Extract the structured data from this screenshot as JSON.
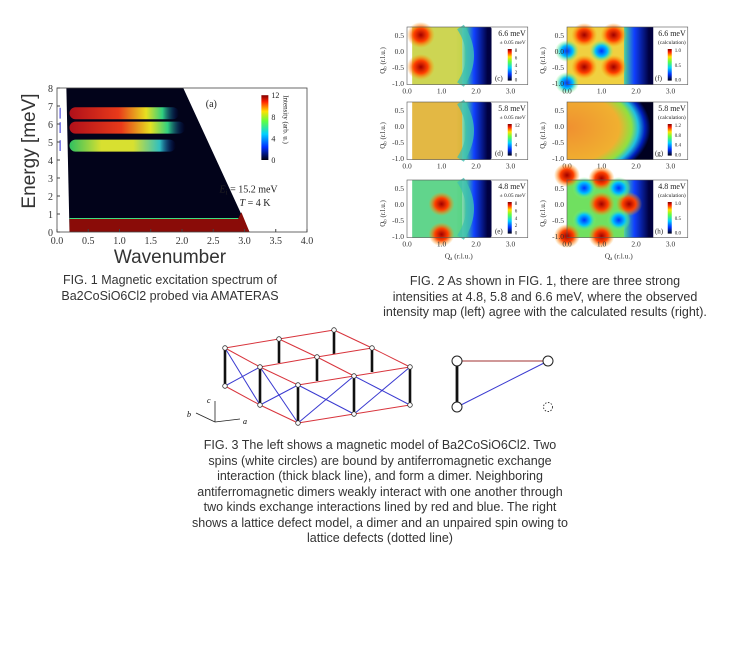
{
  "fig1": {
    "ylabel": "Energy [meV]",
    "xlabel": "Wavenumber",
    "xticks": [
      "0.0",
      "0.5",
      "1.0",
      "1.5",
      "2.0",
      "2.5",
      "3.0",
      "3.5",
      "4.0"
    ],
    "yticks": [
      "0",
      "1",
      "2",
      "3",
      "4",
      "5",
      "6",
      "7",
      "8"
    ],
    "panel_label": "(a)",
    "colorbar_label": "Intensity (arb. u.)",
    "colorbar_ticks": [
      "0",
      "4",
      "8",
      "12"
    ],
    "ei_label": "E",
    "ei_sub": "i",
    "ei_value": " = 15.2 meV",
    "temp_label": "T",
    "temp_value": " = 4 K",
    "bands_meV": [
      4.8,
      5.8,
      6.6
    ],
    "caption_line1": "FIG. 1    Magnetic excitation spectrum of",
    "caption_line2": "Ba2CoSiO6Cl2 probed via AMATERAS"
  },
  "fig2": {
    "xticks": [
      "0.0",
      "1.0",
      "2.0",
      "3.0"
    ],
    "yticks": [
      "0.5",
      "0.0",
      "-0.5",
      "-1.0"
    ],
    "xlabel": "Q",
    "xlabel_sub": "a",
    "xlabel_unit": " (r.l.u.)",
    "ylabel": "Q",
    "ylabel_sub": "b",
    "ylabel_unit": " (r.l.u.)",
    "panels": [
      {
        "label": "(c)",
        "energy": "6.6 meV",
        "note": "± 0.05 meV",
        "cbar": [
          "8",
          "6",
          "4",
          "2",
          "0"
        ],
        "kind": "obs66"
      },
      {
        "label": "(f)",
        "energy": "6.6 meV",
        "note": "(calculation)",
        "cbar": [
          "1.0",
          "0.5",
          "0.0"
        ],
        "kind": "calc66"
      },
      {
        "label": "(d)",
        "energy": "5.8 meV",
        "note": "± 0.05 meV",
        "cbar": [
          "12",
          "8",
          "4",
          "0"
        ],
        "kind": "obs58"
      },
      {
        "label": "(g)",
        "energy": "5.8 meV",
        "note": "(calculation)",
        "cbar": [
          "1.2",
          "0.8",
          "0.4",
          "0.0"
        ],
        "kind": "calc58"
      },
      {
        "label": "(e)",
        "energy": "4.8 meV",
        "note": "± 0.05 meV",
        "cbar": [
          "8",
          "6",
          "4",
          "2",
          "0"
        ],
        "kind": "obs48"
      },
      {
        "label": "(h)",
        "energy": "4.8 meV",
        "note": "(calculation)",
        "cbar": [
          "1.0",
          "0.5",
          "0.0"
        ],
        "kind": "calc48"
      }
    ],
    "caption_line1": "FIG. 2    As shown in FIG. 1, there are three strong",
    "caption_line2": "intensities at 4.8, 5.8 and 6.6 meV, where the observed",
    "caption_line3": "intensity map (left) agree with the calculated results (right)."
  },
  "fig3": {
    "axis_c": "c",
    "axis_b": "b",
    "axis_a": "a",
    "colors": {
      "red": "#d8343c",
      "blue": "#3a3ad0"
    },
    "caption_lines": [
      "FIG. 3    The left shows a magnetic model of Ba2CoSiO6Cl2. Two",
      "spins (white circles) are bound by antiferromagnetic exchange",
      "interaction (thick black line), and form a dimer. Neighboring",
      "antiferromagnetic dimers weakly interact with one another through",
      "two kinds exchange interactions lined by red and blue. The right",
      "shows a lattice defect model, a dimer and an unpaired spin owing to",
      "lattice defects (dotted line)"
    ]
  }
}
